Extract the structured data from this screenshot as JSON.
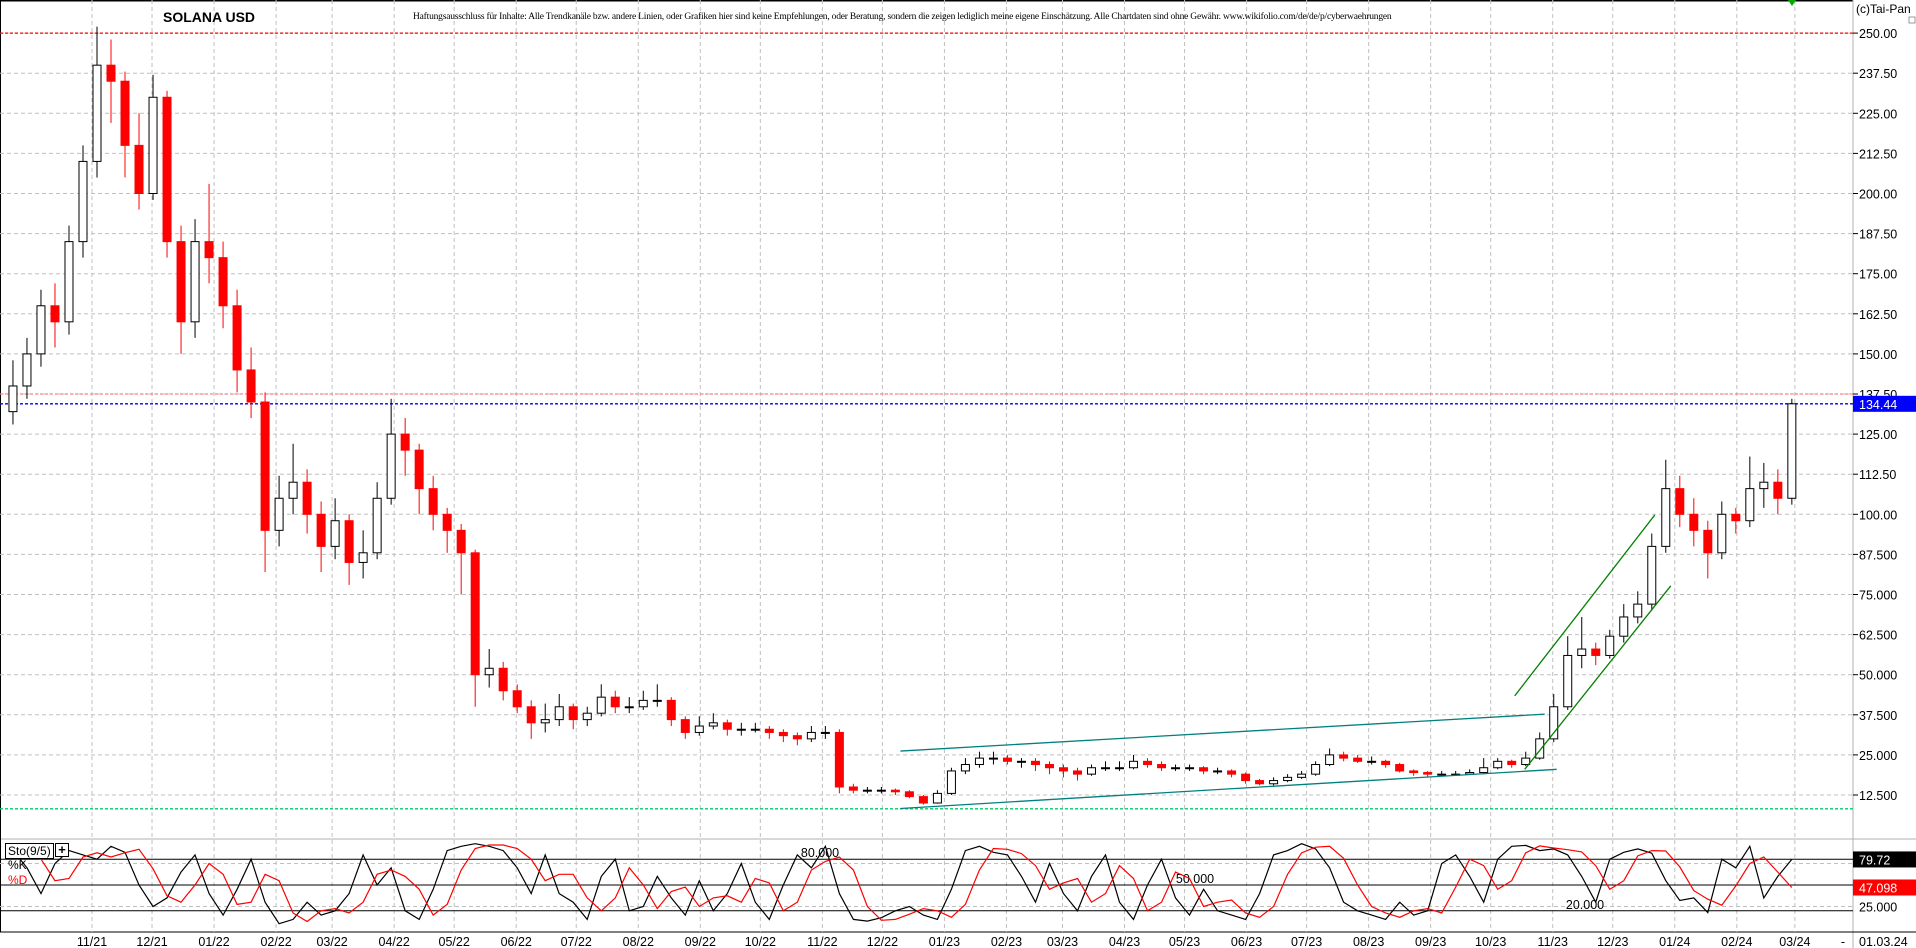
{
  "header": {
    "title": "SOLANA USD",
    "disclaimer": "Haftungsausschluss für Inhalte: Alle Trendkanäle bzw. andere Linien, oder Grafiken hier sind keine Empfehlungen, oder Beratung, sondern die zeigen lediglich meine eigene Einschätzung. Alle Chartdaten sind ohne Gewähr.  www.wikifolio.com/de/de/p/cyberwaehrungen",
    "copyright": "(c)Tai-Pan"
  },
  "colors": {
    "up_body": "#ffffff",
    "up_border": "#000000",
    "down": "#ff0000",
    "trend_channel": "#008080",
    "uptrend": "#008000",
    "price_marker": "#0000ff",
    "resistance": "#ff0000",
    "support": "#00cc66",
    "stoch_k": "#000000",
    "stoch_d": "#ff0000"
  },
  "chart_data": [
    {
      "type": "candlestick",
      "title": "SOLANA USD",
      "interval": "weekly (approximated from daily candles)",
      "first_period": "2021-09-20",
      "ylim": [
        0,
        262.5
      ],
      "grid": true,
      "y_ticks": [
        "250.00",
        "237.50",
        "225.00",
        "212.50",
        "200.00",
        "187.50",
        "175.00",
        "162.50",
        "150.00",
        "137.50",
        "125.00",
        "112.50",
        "100.00",
        "87.500",
        "75.000",
        "62.500",
        "50.000",
        "37.500",
        "25.000",
        "12.500"
      ],
      "x_ticks": [
        "11/21",
        "12/21",
        "01/22",
        "02/22",
        "03/22",
        "04/22",
        "05/22",
        "06/22",
        "07/22",
        "08/22",
        "09/22",
        "10/22",
        "11/22",
        "12/22",
        "01/23",
        "02/23",
        "03/23",
        "04/23",
        "05/23",
        "06/23",
        "07/23",
        "08/23",
        "09/23",
        "10/23",
        "11/23",
        "12/23",
        "01/24",
        "02/24",
        "03/24"
      ],
      "ohlc": [
        [
          132,
          148,
          128,
          140
        ],
        [
          140,
          155,
          136,
          150
        ],
        [
          150,
          170,
          146,
          165
        ],
        [
          165,
          172,
          152,
          160
        ],
        [
          160,
          190,
          156,
          185
        ],
        [
          185,
          215,
          180,
          210
        ],
        [
          210,
          252,
          205,
          240
        ],
        [
          240,
          248,
          222,
          235
        ],
        [
          235,
          238,
          205,
          215
        ],
        [
          215,
          225,
          195,
          200
        ],
        [
          200,
          237,
          198,
          230
        ],
        [
          230,
          232,
          180,
          185
        ],
        [
          185,
          190,
          150,
          160
        ],
        [
          160,
          192,
          155,
          185
        ],
        [
          185,
          203,
          172,
          180
        ],
        [
          180,
          185,
          158,
          165
        ],
        [
          165,
          170,
          138,
          145
        ],
        [
          145,
          152,
          130,
          135
        ],
        [
          135,
          138,
          82,
          95
        ],
        [
          95,
          112,
          90,
          105
        ],
        [
          105,
          122,
          100,
          110
        ],
        [
          110,
          114,
          94,
          100
        ],
        [
          100,
          104,
          82,
          90
        ],
        [
          90,
          105,
          86,
          98
        ],
        [
          98,
          100,
          78,
          85
        ],
        [
          85,
          95,
          80,
          88
        ],
        [
          88,
          110,
          86,
          105
        ],
        [
          105,
          136,
          103,
          125
        ],
        [
          125,
          130,
          112,
          120
        ],
        [
          120,
          122,
          100,
          108
        ],
        [
          108,
          112,
          95,
          100
        ],
        [
          100,
          102,
          88,
          95
        ],
        [
          95,
          97,
          75,
          88
        ],
        [
          88,
          89,
          40,
          50
        ],
        [
          50,
          58,
          46,
          52
        ],
        [
          52,
          54,
          42,
          45
        ],
        [
          45,
          47,
          38,
          40
        ],
        [
          40,
          42,
          30,
          35
        ],
        [
          35,
          41,
          32,
          36
        ],
        [
          36,
          44,
          34,
          40
        ],
        [
          40,
          41,
          33,
          36
        ],
        [
          36,
          40,
          34,
          38
        ],
        [
          38,
          47,
          37,
          43
        ],
        [
          43,
          45,
          38,
          40
        ],
        [
          40,
          43,
          38,
          40
        ],
        [
          40,
          45,
          39,
          42
        ],
        [
          42,
          47,
          40,
          42
        ],
        [
          42,
          43,
          34,
          36
        ],
        [
          36,
          37,
          30,
          32
        ],
        [
          32,
          37,
          31,
          34
        ],
        [
          34,
          38,
          33,
          35
        ],
        [
          35,
          36,
          31,
          33
        ],
        [
          33,
          35,
          31,
          33
        ],
        [
          33,
          35,
          32,
          33
        ],
        [
          33,
          34,
          30,
          32
        ],
        [
          32,
          33,
          29,
          31
        ],
        [
          31,
          32,
          28,
          30
        ],
        [
          30,
          34,
          29,
          32
        ],
        [
          32,
          34,
          30,
          32
        ],
        [
          32,
          33,
          13,
          15
        ],
        [
          15,
          16,
          13,
          14
        ],
        [
          14,
          15,
          13,
          14
        ],
        [
          14,
          15,
          13,
          14
        ],
        [
          14,
          14.5,
          12.5,
          13.5
        ],
        [
          13.5,
          14,
          11.5,
          12
        ],
        [
          12,
          12.5,
          9.5,
          10
        ],
        [
          10,
          14,
          9.8,
          13
        ],
        [
          13,
          21,
          12.5,
          20
        ],
        [
          20,
          24,
          19,
          22
        ],
        [
          22,
          26,
          21,
          24
        ],
        [
          24,
          26,
          22,
          24
        ],
        [
          24,
          25,
          22,
          23
        ],
        [
          23,
          24,
          21,
          23
        ],
        [
          23,
          24,
          20,
          22
        ],
        [
          22,
          23,
          19,
          21
        ],
        [
          21,
          22,
          18,
          20
        ],
        [
          20,
          21,
          17,
          19
        ],
        [
          19,
          22,
          18.5,
          21
        ],
        [
          21,
          23,
          20,
          21
        ],
        [
          21,
          23,
          20,
          21
        ],
        [
          21,
          25,
          20.5,
          23
        ],
        [
          23,
          24,
          21,
          22
        ],
        [
          22,
          23,
          20,
          21
        ],
        [
          21,
          22,
          20,
          21
        ],
        [
          21,
          22,
          20,
          21
        ],
        [
          21,
          21.5,
          19,
          20
        ],
        [
          20,
          21,
          19,
          20
        ],
        [
          20,
          20.5,
          18,
          19
        ],
        [
          19,
          19.5,
          16,
          17
        ],
        [
          17,
          17.5,
          15.5,
          16
        ],
        [
          16,
          18,
          15.5,
          17
        ],
        [
          17,
          19,
          16.5,
          18
        ],
        [
          18,
          20,
          17.5,
          19
        ],
        [
          19,
          23,
          18.5,
          22
        ],
        [
          22,
          27,
          21.5,
          25
        ],
        [
          25,
          26,
          23,
          24
        ],
        [
          24,
          25,
          22.5,
          23
        ],
        [
          23,
          24.5,
          22,
          23
        ],
        [
          23,
          23.5,
          21,
          22
        ],
        [
          22,
          22.5,
          19.5,
          20
        ],
        [
          20,
          20.5,
          18.5,
          19.5
        ],
        [
          19.5,
          20,
          18,
          19
        ],
        [
          19,
          20,
          18.5,
          19
        ],
        [
          19,
          20,
          18.5,
          19
        ],
        [
          19,
          20.5,
          18.8,
          19.5
        ],
        [
          19.5,
          24,
          19,
          21
        ],
        [
          21,
          24,
          20.5,
          23
        ],
        [
          23,
          23.5,
          21,
          22
        ],
        [
          22,
          26,
          21.5,
          24
        ],
        [
          24,
          32,
          23.5,
          30
        ],
        [
          30,
          44,
          29,
          40
        ],
        [
          40,
          62,
          39,
          56
        ],
        [
          56,
          68,
          52,
          58
        ],
        [
          58,
          60,
          53,
          56
        ],
        [
          56,
          64,
          55,
          62
        ],
        [
          62,
          72,
          60,
          68
        ],
        [
          68,
          76,
          66,
          72
        ],
        [
          72,
          94,
          70,
          90
        ],
        [
          90,
          117,
          88,
          108
        ],
        [
          108,
          112,
          96,
          100
        ],
        [
          100,
          105,
          90,
          95
        ],
        [
          95,
          98,
          80,
          88
        ],
        [
          88,
          104,
          86,
          100
        ],
        [
          100,
          102,
          94,
          98
        ],
        [
          98,
          118,
          96,
          108
        ],
        [
          108,
          116,
          102,
          110
        ],
        [
          110,
          114,
          100,
          105
        ],
        [
          105,
          136,
          103,
          134.44
        ]
      ],
      "last_price": "134.44",
      "horizontal_lines": [
        {
          "price": 250,
          "style": "dotted",
          "color": "#ff0000"
        },
        {
          "price": 137.5,
          "style": "dotted",
          "color": "#ff8080"
        },
        {
          "price": 134.44,
          "style": "dotted",
          "color": "#0000ff"
        },
        {
          "price": 8.2,
          "style": "dotted",
          "color": "#00cc66"
        }
      ],
      "trend_lines": [
        {
          "from": [
            "2022-12-10",
            26.2
          ],
          "to": [
            "2023-10-28",
            37.7
          ],
          "color": "#008080"
        },
        {
          "from": [
            "2022-12-10",
            8.3
          ],
          "to": [
            "2023-11-03",
            20.5
          ],
          "color": "#008080"
        },
        {
          "from": [
            "2023-10-13",
            43.4
          ],
          "to": [
            "2023-12-22",
            99.8
          ],
          "color": "#008000"
        },
        {
          "from": [
            "2023-10-18",
            20.5
          ],
          "to": [
            "2023-12-30",
            77.7
          ],
          "color": "#008000"
        }
      ]
    },
    {
      "type": "line",
      "indicator": "Sto(9/5)",
      "ylim": [
        0,
        100
      ],
      "levels": [
        {
          "value": 80,
          "label": "80.000"
        },
        {
          "value": 50,
          "label": "50.000"
        },
        {
          "value": 20,
          "label": "20.000"
        }
      ],
      "axis_tick": "25.000",
      "series": [
        {
          "name": "%K",
          "last": "79.72",
          "values": [
            90,
            70,
            40,
            75,
            90,
            85,
            80,
            95,
            88,
            50,
            25,
            35,
            65,
            85,
            40,
            15,
            45,
            80,
            30,
            5,
            10,
            30,
            15,
            20,
            40,
            85,
            50,
            70,
            20,
            10,
            45,
            90,
            95,
            98,
            95,
            90,
            70,
            40,
            85,
            40,
            30,
            10,
            60,
            80,
            20,
            25,
            60,
            35,
            15,
            55,
            20,
            40,
            75,
            30,
            10,
            50,
            85,
            70,
            95,
            40,
            10,
            8,
            12,
            20,
            25,
            15,
            10,
            45,
            90,
            95,
            88,
            85,
            60,
            30,
            75,
            40,
            20,
            60,
            85,
            30,
            10,
            50,
            80,
            35,
            15,
            45,
            20,
            15,
            10,
            40,
            85,
            90,
            98,
            92,
            70,
            30,
            20,
            15,
            10,
            30,
            15,
            20,
            75,
            85,
            60,
            30,
            80,
            95,
            96,
            90,
            92,
            85,
            60,
            30,
            80,
            88,
            92,
            87,
            55,
            32,
            35,
            18,
            80,
            70,
            95,
            35,
            60,
            79.72
          ]
        },
        {
          "name": "%D",
          "last": "47.098",
          "values": [
            85,
            88,
            80,
            55,
            57.5,
            82.5,
            87.5,
            82.5,
            87.5,
            91.5,
            69,
            37.5,
            30,
            50,
            75,
            62.5,
            27.5,
            30,
            62.5,
            55,
            17.5,
            7.5,
            20,
            22.5,
            17.5,
            30,
            62.5,
            67.5,
            60,
            45,
            15,
            27.5,
            67.5,
            92.5,
            96.5,
            96.5,
            92.5,
            80,
            55,
            62.5,
            62.5,
            35,
            20,
            35,
            70,
            50,
            22.5,
            42.5,
            47.5,
            25,
            35,
            37.5,
            30,
            57.5,
            52.5,
            20,
            30,
            67.5,
            77.5,
            82.5,
            67.5,
            25,
            9,
            10,
            16,
            22.5,
            20,
            12.5,
            27.5,
            67.5,
            92.5,
            91.5,
            86.5,
            72.5,
            45,
            52.5,
            57.5,
            30,
            40,
            72.5,
            57.5,
            20,
            30,
            65,
            57.5,
            25,
            30,
            32.5,
            17.5,
            12.5,
            25,
            62.5,
            87.5,
            94,
            95,
            81,
            50,
            25,
            17.5,
            12.5,
            20,
            22.5,
            17.5,
            47.5,
            80,
            72.5,
            45,
            55,
            87.5,
            95.5,
            93,
            91,
            88.5,
            72.5,
            45,
            55,
            84,
            90,
            89.5,
            71,
            43.5,
            33.5,
            26.5,
            49,
            75,
            82.5,
            65,
            47.098
          ]
        }
      ]
    }
  ],
  "footer": {
    "dash": "-",
    "date": "01.03.24"
  }
}
